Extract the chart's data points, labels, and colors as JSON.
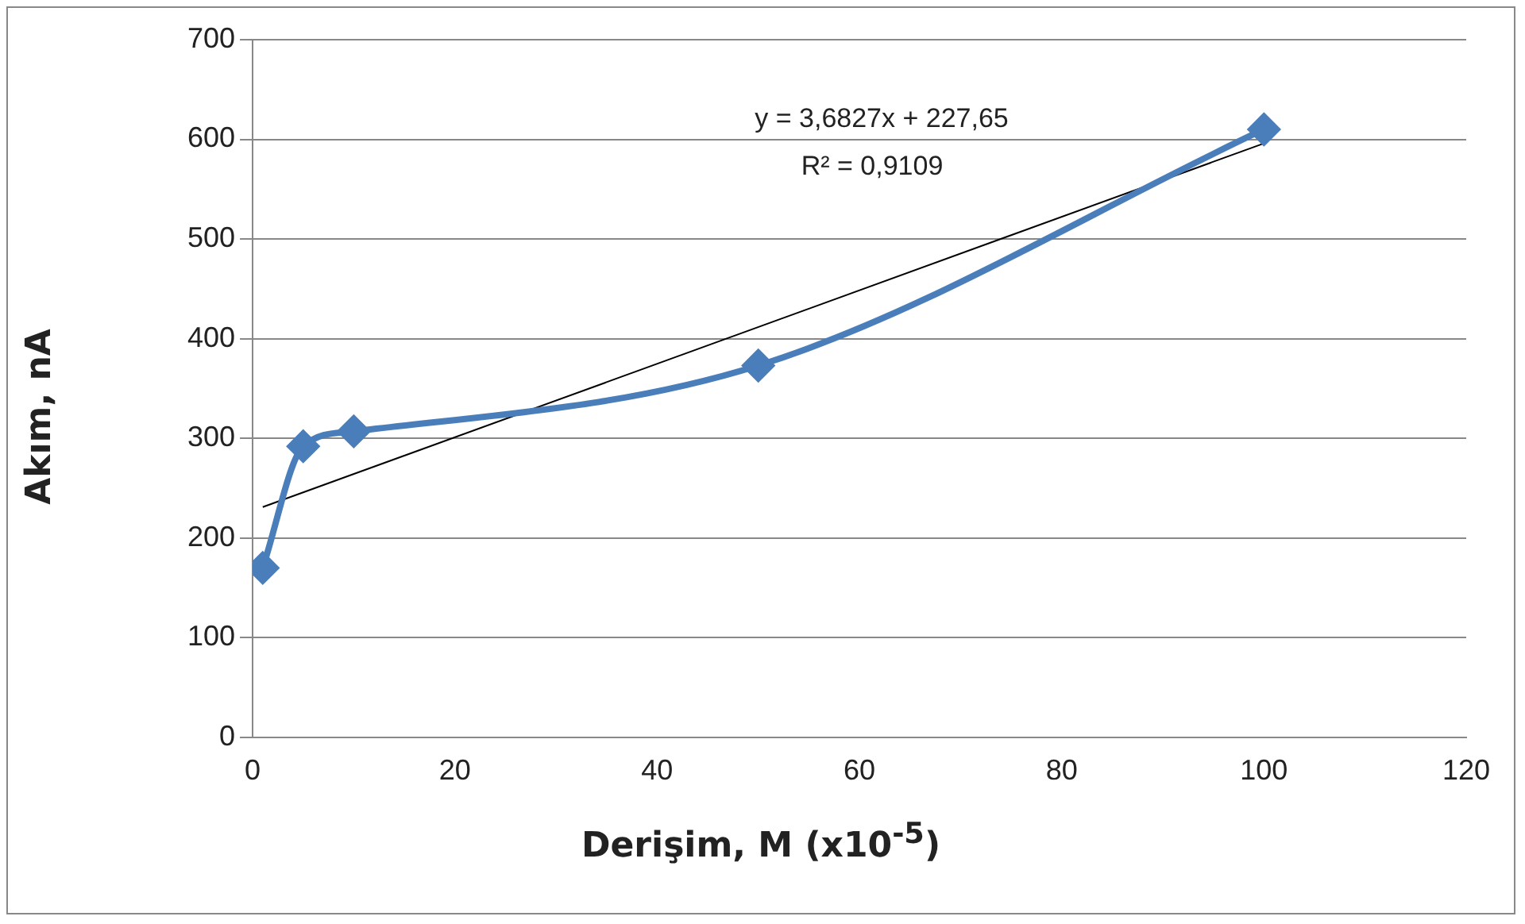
{
  "chart_data": {
    "type": "line",
    "xlabel": "Derişim, M (x10$^{-5}$)",
    "ylabel": "Akım, nA",
    "annotations": [
      "y = 3,6827x + 227,65",
      "R² = 0,9109"
    ],
    "series": [
      {
        "color": "#4a7ebb",
        "x": [
          1,
          5,
          10,
          50,
          100
        ],
        "values": [
          170,
          292,
          307,
          373,
          610
        ],
        "marker": "diamond"
      },
      {
        "color": "#000000",
        "x": [
          1,
          100
        ],
        "values": [
          231,
          596
        ],
        "marker": "none"
      }
    ],
    "xlim": [
      0,
      120
    ],
    "xticks": [
      0,
      20,
      40,
      60,
      80,
      100,
      120
    ],
    "ylim": [
      0,
      700
    ],
    "yticks": [
      0,
      100,
      200,
      300,
      400,
      500,
      600,
      700
    ],
    "grid": "y",
    "legend": false
  }
}
